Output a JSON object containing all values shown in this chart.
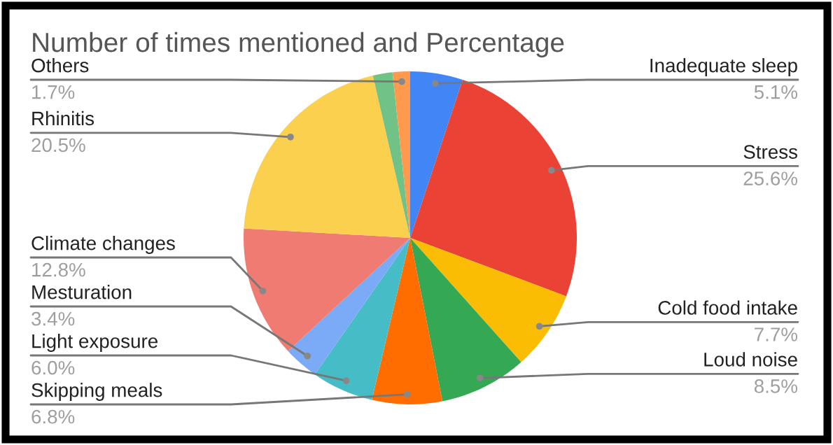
{
  "chart_data": {
    "type": "pie",
    "title": "Number of times mentioned and Percentage",
    "categories": [
      "Inadequate sleep",
      "Stress",
      "Cold food intake",
      "Loud noise",
      "Skipping meals",
      "Light exposure",
      "Mesturation",
      "Climate changes",
      "Rhinitis",
      null,
      "Others"
    ],
    "values": [
      5.1,
      25.6,
      7.7,
      8.5,
      6.8,
      6.0,
      3.4,
      12.8,
      20.5,
      1.9,
      1.7
    ],
    "value_labels": [
      "5.1%",
      "25.6%",
      "7.7%",
      "8.5%",
      "6.8%",
      "6.0%",
      "3.4%",
      "12.8%",
      "20.5%",
      null,
      "1.7%"
    ],
    "colors": [
      "#4285f4",
      "#ea4335",
      "#fbbc04",
      "#34a853",
      "#ff6d01",
      "#46bdc6",
      "#7baaf7",
      "#f07b72",
      "#fcd04f",
      "#71c287",
      "#ff994d"
    ]
  }
}
